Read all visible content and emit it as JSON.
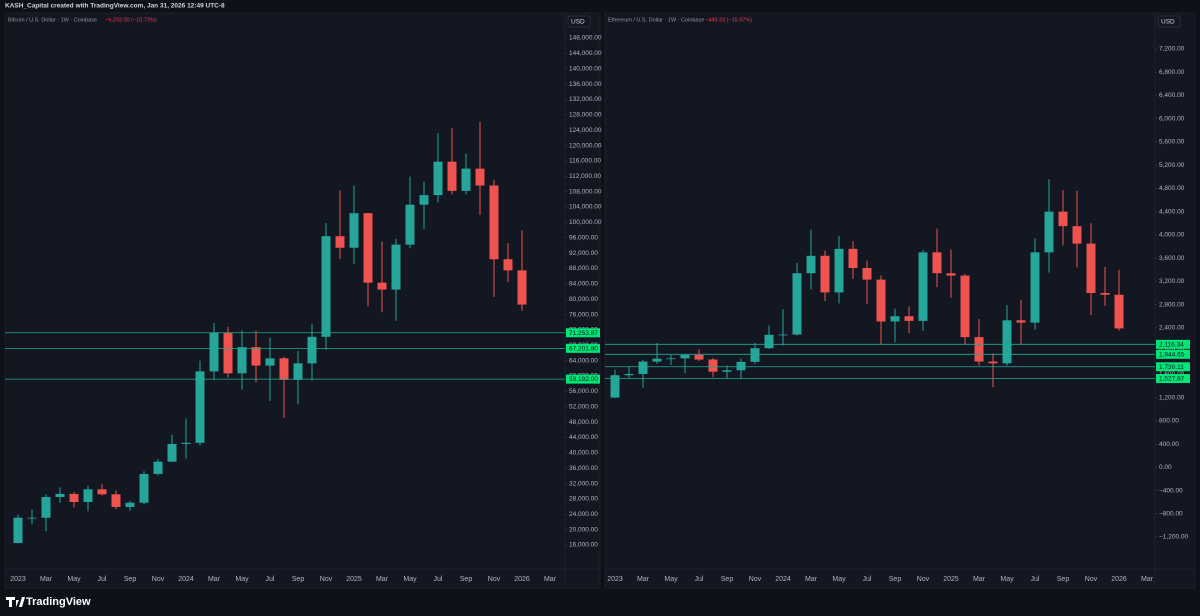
{
  "header": "KASH_Capital created with TradingView.com, Jan 31, 2026 12:49 UTC-8",
  "footer": {
    "brand": "TradingView"
  },
  "chart_data": [
    {
      "type": "candlestick",
      "title": "Bitcoin / U.S. Dollar · 1W · Coinbase",
      "change": "−9,292.00 (−10.73%)",
      "currency": "USD",
      "up_color": "#26a69a",
      "down_color": "#ef5350",
      "level_color": "#22ab94",
      "level_label_color": "#00e676",
      "categories": [
        "2023",
        null,
        "Mar",
        null,
        "May",
        null,
        "Jul",
        null,
        "Sep",
        null,
        "Nov",
        null,
        "2024",
        null,
        "Mar",
        null,
        "May",
        null,
        "Jul",
        null,
        "Sep",
        null,
        "Nov",
        null,
        "2025",
        null,
        "Mar",
        null,
        "May",
        null,
        "Jul",
        null,
        "Sep",
        null,
        "Nov",
        null,
        "2026",
        null,
        "Mar"
      ],
      "open": [
        16500,
        23100,
        23100,
        28500,
        29300,
        27200,
        30500,
        29200,
        25900,
        27000,
        34500,
        37700,
        42300,
        42600,
        61200,
        71300,
        60700,
        67500,
        62700,
        64600,
        59000,
        63300,
        70200,
        96400,
        93400,
        102400,
        84300,
        82500,
        94200,
        104600,
        107100,
        115800,
        108200,
        114000,
        109600,
        90400,
        87500,
        null,
        null
      ],
      "high": [
        23900,
        25200,
        29200,
        31000,
        29800,
        31400,
        31800,
        30200,
        27500,
        35200,
        38400,
        44700,
        48900,
        64000,
        73800,
        72800,
        71900,
        71900,
        70000,
        65000,
        66500,
        73600,
        99800,
        108300,
        109600,
        102500,
        95000,
        95700,
        111900,
        110500,
        123200,
        124500,
        117900,
        126200,
        111000,
        94600,
        97900,
        null,
        null
      ],
      "low": [
        16500,
        21400,
        19600,
        27000,
        25800,
        24800,
        28900,
        25300,
        24900,
        26600,
        34100,
        37600,
        38500,
        41900,
        59000,
        59600,
        56500,
        58400,
        53500,
        49100,
        52600,
        58900,
        66800,
        90500,
        89200,
        78200,
        76600,
        74400,
        93300,
        98200,
        105200,
        107300,
        107300,
        102000,
        80600,
        84400,
        77000,
        null,
        null
      ],
      "close": [
        23100,
        23100,
        28500,
        29300,
        27200,
        30500,
        29200,
        25900,
        27000,
        34500,
        37700,
        42300,
        42600,
        61200,
        71300,
        60700,
        67500,
        62700,
        64600,
        59000,
        63300,
        70200,
        96400,
        93400,
        102400,
        84300,
        82500,
        94200,
        104600,
        107100,
        115800,
        108200,
        114000,
        109600,
        90400,
        87500,
        78600,
        null,
        null
      ],
      "levels": [
        {
          "value": 71253.87,
          "label": "71,253.87"
        },
        {
          "value": 67201.8,
          "label": "67,201.80"
        },
        {
          "value": 59192,
          "label": "59,192.00"
        }
      ],
      "ylim": [
        12875,
        154250
      ],
      "yticks": [
        {
          "value": 16000,
          "label": "16,000.00"
        },
        {
          "value": 20000,
          "label": "20,000.00"
        },
        {
          "value": 24000,
          "label": "24,000.00"
        },
        {
          "value": 28000,
          "label": "28,000.00"
        },
        {
          "value": 32000,
          "label": "32,000.00"
        },
        {
          "value": 36000,
          "label": "36,000.00"
        },
        {
          "value": 40000,
          "label": "40,000.00"
        },
        {
          "value": 44000,
          "label": "44,000.00"
        },
        {
          "value": 48000,
          "label": "48,000.00"
        },
        {
          "value": 52000,
          "label": "52,000.00"
        },
        {
          "value": 56000,
          "label": "56,000.00"
        },
        {
          "value": 60000,
          "label": "60,000.00"
        },
        {
          "value": 64000,
          "label": "64,000.00"
        },
        {
          "value": 68000,
          "label": "68,000.00"
        },
        {
          "value": 72000,
          "label": "72,000.00"
        },
        {
          "value": 76000,
          "label": "76,000.00"
        },
        {
          "value": 80000,
          "label": "80,000.00"
        },
        {
          "value": 84000,
          "label": "84,000.00"
        },
        {
          "value": 88000,
          "label": "88,000.00"
        },
        {
          "value": 92000,
          "label": "92,000.00"
        },
        {
          "value": 96000,
          "label": "96,000.00"
        },
        {
          "value": 100000,
          "label": "100,000.00"
        },
        {
          "value": 104000,
          "label": "104,000.00"
        },
        {
          "value": 108000,
          "label": "108,000.00"
        },
        {
          "value": 112000,
          "label": "112,000.00"
        },
        {
          "value": 116000,
          "label": "116,000.00"
        },
        {
          "value": 120000,
          "label": "120,000.00"
        },
        {
          "value": 124000,
          "label": "124,000.00"
        },
        {
          "value": 128000,
          "label": "128,000.00"
        },
        {
          "value": 132000,
          "label": "132,000.00"
        },
        {
          "value": 136000,
          "label": "136,000.00"
        },
        {
          "value": 140000,
          "label": "140,000.00"
        },
        {
          "value": 144000,
          "label": "144,000.00"
        },
        {
          "value": 148000,
          "label": "148,000.00"
        }
      ]
    },
    {
      "type": "candlestick",
      "title": "Ethereum / U.S. Dollar · 1W · Coinbase",
      "change": "−449.33 (−15.97%)",
      "currency": "USD",
      "up_color": "#26a69a",
      "down_color": "#ef5350",
      "level_color": "#22ab94",
      "level_label_color": "#00e676",
      "categories": [
        "2023",
        null,
        "Mar",
        null,
        "May",
        null,
        "Jul",
        null,
        "Sep",
        null,
        "Nov",
        null,
        "2024",
        null,
        "Mar",
        null,
        "May",
        null,
        "Jul",
        null,
        "Sep",
        null,
        "Nov",
        null,
        "2025",
        null,
        "Mar",
        null,
        "May",
        null,
        "Jul",
        null,
        "Sep",
        null,
        "Nov",
        null,
        "2026",
        null,
        "Mar"
      ],
      "open": [
        1200,
        1585,
        1605,
        1820,
        1870,
        1875,
        1935,
        1855,
        1645,
        1670,
        1815,
        2050,
        2280,
        2285,
        3340,
        3640,
        3010,
        3760,
        3430,
        3230,
        2510,
        2600,
        2520,
        3700,
        3340,
        3300,
        2240,
        1820,
        1790,
        2530,
        2490,
        3700,
        4400,
        4150,
        3850,
        3000,
        2970,
        null,
        null
      ],
      "high": [
        1680,
        1740,
        1850,
        2140,
        1930,
        1930,
        2030,
        1880,
        1750,
        1870,
        2140,
        2440,
        2720,
        3520,
        4090,
        3730,
        3980,
        3890,
        3560,
        3300,
        2730,
        2770,
        3740,
        4110,
        3750,
        3330,
        2550,
        1960,
        2790,
        2880,
        3940,
        4960,
        4770,
        4760,
        4200,
        3450,
        3400,
        null,
        null
      ],
      "low": [
        1190,
        1540,
        1370,
        1780,
        1760,
        1620,
        1830,
        1550,
        1530,
        1520,
        1780,
        2040,
        2100,
        2270,
        3060,
        2860,
        2820,
        3240,
        2810,
        2110,
        2150,
        2310,
        2350,
        3100,
        2920,
        2120,
        1750,
        1380,
        1750,
        2110,
        2370,
        3350,
        3820,
        3440,
        2620,
        2780,
        2350,
        null,
        null
      ],
      "close": [
        1585,
        1605,
        1820,
        1870,
        1875,
        1935,
        1855,
        1645,
        1670,
        1815,
        2050,
        2280,
        2285,
        3340,
        3640,
        3010,
        3760,
        3430,
        3230,
        2510,
        2600,
        2520,
        3700,
        3340,
        3300,
        2240,
        1820,
        1790,
        2530,
        2490,
        3700,
        4400,
        4150,
        3850,
        3000,
        2970,
        2390,
        null,
        null
      ],
      "levels": [
        {
          "value": 2116.34,
          "label": "2,116.34"
        },
        {
          "value": 1944.65,
          "label": "1,944.65"
        },
        {
          "value": 1730.11,
          "label": "1,730.11"
        },
        {
          "value": 1527.87,
          "label": "1,527.87"
        }
      ],
      "ylim": [
        -1544,
        7802
      ],
      "yticks": [
        {
          "value": -1200,
          "label": "−1,200.00"
        },
        {
          "value": -800,
          "label": "−800.00"
        },
        {
          "value": -400,
          "label": "−400.00"
        },
        {
          "value": 0,
          "label": "0.00"
        },
        {
          "value": 400,
          "label": "400.00"
        },
        {
          "value": 800,
          "label": "800.00"
        },
        {
          "value": 1200,
          "label": "1,200.00"
        },
        {
          "value": 1600,
          "label": "1,600.00"
        },
        {
          "value": 2000,
          "label": "2,000.00"
        },
        {
          "value": 2400,
          "label": "2,400.00"
        },
        {
          "value": 2800,
          "label": "2,800.00"
        },
        {
          "value": 3200,
          "label": "3,200.00"
        },
        {
          "value": 3600,
          "label": "3,600.00"
        },
        {
          "value": 4000,
          "label": "4,000.00"
        },
        {
          "value": 4400,
          "label": "4,400.00"
        },
        {
          "value": 4800,
          "label": "4,800.00"
        },
        {
          "value": 5200,
          "label": "5,200.00"
        },
        {
          "value": 5600,
          "label": "5,600.00"
        },
        {
          "value": 6000,
          "label": "6,000.00"
        },
        {
          "value": 6400,
          "label": "6,400.00"
        },
        {
          "value": 6800,
          "label": "6,800.00"
        },
        {
          "value": 7200,
          "label": "7,200.00"
        }
      ]
    }
  ]
}
